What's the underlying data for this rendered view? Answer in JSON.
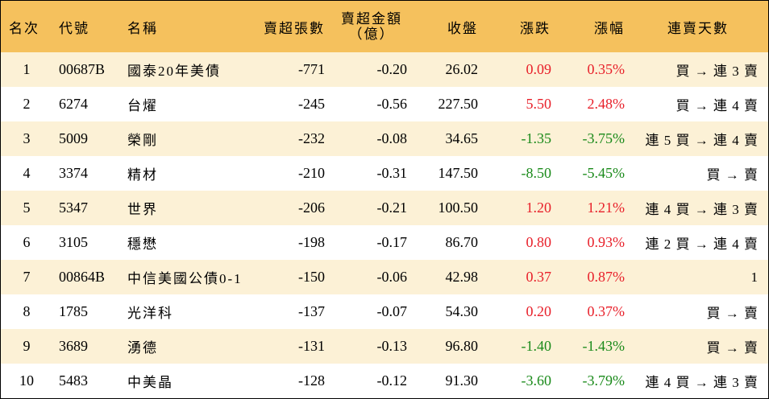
{
  "header": {
    "rank": "名次",
    "code": "代號",
    "name": "名稱",
    "sell_lots": "賣超張數",
    "sell_amount_line1": "賣超金額",
    "sell_amount_line2": "（億）",
    "close": "收盤",
    "change": "漲跌",
    "pct": "漲幅",
    "streak": "連賣天數"
  },
  "colors": {
    "header_bg": "#f5c15d",
    "stripe_bg": "#fcf1d6",
    "up": "#e8202a",
    "down": "#1a8a1a"
  },
  "rows": [
    {
      "rank": "1",
      "code": "00687B",
      "name": "國泰20年美債",
      "sell_lots": "-771",
      "sell_amount": "-0.20",
      "close": "26.02",
      "change": "0.09",
      "pct": "0.35%",
      "dir": "up",
      "streak": "買 → 連 3 賣"
    },
    {
      "rank": "2",
      "code": "6274",
      "name": "台燿",
      "sell_lots": "-245",
      "sell_amount": "-0.56",
      "close": "227.50",
      "change": "5.50",
      "pct": "2.48%",
      "dir": "up",
      "streak": "買 → 連 4 賣"
    },
    {
      "rank": "3",
      "code": "5009",
      "name": "榮剛",
      "sell_lots": "-232",
      "sell_amount": "-0.08",
      "close": "34.65",
      "change": "-1.35",
      "pct": "-3.75%",
      "dir": "down",
      "streak": "連 5 買 → 連 4 賣"
    },
    {
      "rank": "4",
      "code": "3374",
      "name": "精材",
      "sell_lots": "-210",
      "sell_amount": "-0.31",
      "close": "147.50",
      "change": "-8.50",
      "pct": "-5.45%",
      "dir": "down",
      "streak": "買 → 賣"
    },
    {
      "rank": "5",
      "code": "5347",
      "name": "世界",
      "sell_lots": "-206",
      "sell_amount": "-0.21",
      "close": "100.50",
      "change": "1.20",
      "pct": "1.21%",
      "dir": "up",
      "streak": "連 4 買 → 連 3 賣"
    },
    {
      "rank": "6",
      "code": "3105",
      "name": "穩懋",
      "sell_lots": "-198",
      "sell_amount": "-0.17",
      "close": "86.70",
      "change": "0.80",
      "pct": "0.93%",
      "dir": "up",
      "streak": "連 2 買 → 連 4 賣"
    },
    {
      "rank": "7",
      "code": "00864B",
      "name": "中信美國公債0-1",
      "sell_lots": "-150",
      "sell_amount": "-0.06",
      "close": "42.98",
      "change": "0.37",
      "pct": "0.87%",
      "dir": "up",
      "streak": "1"
    },
    {
      "rank": "8",
      "code": "1785",
      "name": "光洋科",
      "sell_lots": "-137",
      "sell_amount": "-0.07",
      "close": "54.30",
      "change": "0.20",
      "pct": "0.37%",
      "dir": "up",
      "streak": "買 → 賣"
    },
    {
      "rank": "9",
      "code": "3689",
      "name": "湧德",
      "sell_lots": "-131",
      "sell_amount": "-0.13",
      "close": "96.80",
      "change": "-1.40",
      "pct": "-1.43%",
      "dir": "down",
      "streak": "買 → 賣"
    },
    {
      "rank": "10",
      "code": "5483",
      "name": "中美晶",
      "sell_lots": "-128",
      "sell_amount": "-0.12",
      "close": "91.30",
      "change": "-3.60",
      "pct": "-3.79%",
      "dir": "down",
      "streak": "連 4 買 → 連 3 賣"
    }
  ]
}
